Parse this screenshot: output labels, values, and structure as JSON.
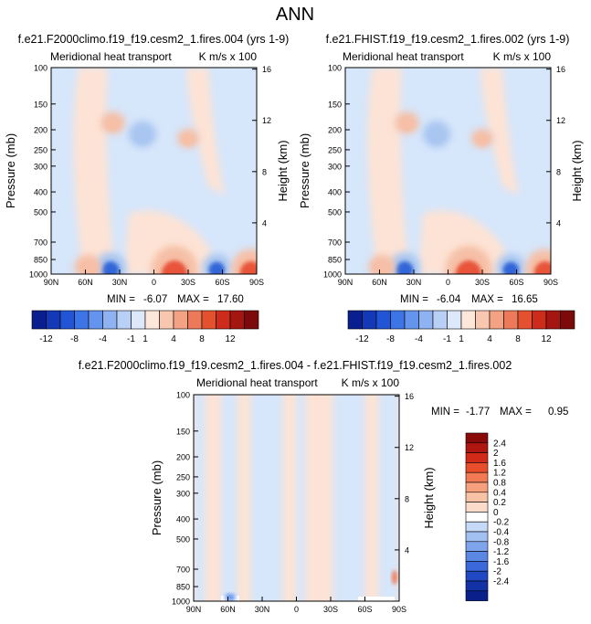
{
  "figure_title": "ANN",
  "colors": {
    "warm_mid": "#f6bfa6",
    "warm_strong": "#e8553a",
    "cool_mid": "#a9c6f0",
    "cool_strong": "#3066d8",
    "bg_pos": "#fde3d5",
    "bg_neg": "#d6e6fb"
  },
  "chart_data": [
    {
      "type": "heatmap",
      "title": "f.e21.F2000climo.f19_f19.cesm2_1.fires.004 (yrs 1-9)",
      "subtitle_left": "Meridional heat transport",
      "subtitle_right": "K m/s x 100",
      "ylabel": "Pressure (mb)",
      "ylabel_right": "Height (km)",
      "x_ticks": [
        "90N",
        "60N",
        "30N",
        "0",
        "30S",
        "60S",
        "90S"
      ],
      "y_ticks": [
        "100",
        "150",
        "200",
        "250",
        "300",
        "400",
        "500",
        "700",
        "850",
        "1000"
      ],
      "y_right_ticks": [
        "16",
        "12",
        "8",
        "4"
      ],
      "xlim": [
        90,
        -90
      ],
      "ylim": [
        1000,
        100
      ],
      "min_text": "MIN =",
      "min_value": "-6.07",
      "max_text": "MAX =",
      "max_value": "17.60",
      "features": [
        {
          "lat": -18,
          "p": 960,
          "value": 17.6
        },
        {
          "lat": 38,
          "p": 930,
          "value": -5.5
        },
        {
          "lat": -55,
          "p": 930,
          "value": -4.5
        },
        {
          "lat": 58,
          "p": 925,
          "value": 3.5
        },
        {
          "lat": 10,
          "p": 210,
          "value": -4.0
        },
        {
          "lat": 36,
          "p": 185,
          "value": 2.5
        },
        {
          "lat": -30,
          "p": 220,
          "value": 1.5
        },
        {
          "lat": -85,
          "p": 950,
          "value": 9.0
        }
      ]
    },
    {
      "type": "heatmap",
      "title": "f.e21.FHIST.f19_f19.cesm2_1.fires.002 (yrs 1-9)",
      "subtitle_left": "Meridional heat transport",
      "subtitle_right": "K m/s x 100",
      "ylabel": "Pressure (mb)",
      "ylabel_right": "Height (km)",
      "x_ticks": [
        "90N",
        "60N",
        "30N",
        "0",
        "30S",
        "60S",
        "90S"
      ],
      "y_ticks": [
        "100",
        "150",
        "200",
        "250",
        "300",
        "400",
        "500",
        "700",
        "850",
        "1000"
      ],
      "y_right_ticks": [
        "16",
        "12",
        "8",
        "4"
      ],
      "xlim": [
        90,
        -90
      ],
      "ylim": [
        1000,
        100
      ],
      "min_text": "MIN =",
      "min_value": "-6.04",
      "max_text": "MAX =",
      "max_value": "16.65",
      "features": [
        {
          "lat": -18,
          "p": 960,
          "value": 16.65
        },
        {
          "lat": 38,
          "p": 930,
          "value": -5.5
        },
        {
          "lat": -55,
          "p": 930,
          "value": -4.5
        },
        {
          "lat": 58,
          "p": 925,
          "value": 3.5
        },
        {
          "lat": 10,
          "p": 210,
          "value": -4.0
        },
        {
          "lat": 36,
          "p": 185,
          "value": 2.5
        },
        {
          "lat": -30,
          "p": 220,
          "value": 1.5
        },
        {
          "lat": -85,
          "p": 950,
          "value": 9.0
        }
      ]
    },
    {
      "type": "heatmap",
      "title": "f.e21.F2000climo.f19_f19.cesm2_1.fires.004 - f.e21.FHIST.f19_f19.cesm2_1.fires.002",
      "subtitle_left": "Meridional heat transport",
      "subtitle_right": "K m/s x 100",
      "ylabel": "Pressure (mb)",
      "ylabel_right": "Height (km)",
      "x_ticks": [
        "90N",
        "60N",
        "30N",
        "0",
        "30S",
        "60S",
        "90S"
      ],
      "y_ticks": [
        "100",
        "150",
        "200",
        "250",
        "300",
        "400",
        "500",
        "700",
        "850",
        "1000"
      ],
      "y_right_ticks": [
        "16",
        "12",
        "8",
        "4"
      ],
      "xlim": [
        90,
        -90
      ],
      "ylim": [
        1000,
        100
      ],
      "min_text": "MIN =",
      "min_value": "-1.77",
      "max_text": "MAX =",
      "max_value": "0.95",
      "bands": [
        {
          "lat_from": 90,
          "lat_to": 80,
          "sign": "neg"
        },
        {
          "lat_from": 80,
          "lat_to": 66,
          "sign": "pos"
        },
        {
          "lat_from": 66,
          "lat_to": 52,
          "sign": "neg"
        },
        {
          "lat_from": 52,
          "lat_to": 40,
          "sign": "pos"
        },
        {
          "lat_from": 40,
          "lat_to": 12,
          "sign": "neg"
        },
        {
          "lat_from": 12,
          "lat_to": 0,
          "sign": "pos"
        },
        {
          "lat_from": 0,
          "lat_to": -8,
          "sign": "neg"
        },
        {
          "lat_from": -8,
          "lat_to": -32,
          "sign": "pos"
        },
        {
          "lat_from": -32,
          "lat_to": -60,
          "sign": "neg"
        },
        {
          "lat_from": -60,
          "lat_to": -72,
          "sign": "pos"
        },
        {
          "lat_from": -72,
          "lat_to": -90,
          "sign": "neg"
        }
      ]
    }
  ],
  "colorbar_main": {
    "colors": [
      "#0a1f8f",
      "#1339b8",
      "#2255d6",
      "#3d74e6",
      "#6494ee",
      "#8fb2f2",
      "#b8cff6",
      "#dde8fb",
      "#fde6da",
      "#f9c7b0",
      "#f3a283",
      "#ec7a5a",
      "#e3512f",
      "#cc2c19",
      "#a51610",
      "#7c0a0a"
    ],
    "labels": [
      "-12",
      "-8",
      "-4",
      "-1",
      "1",
      "4",
      "8",
      "12"
    ]
  },
  "colorbar_diff": {
    "colors": [
      "#8a0a0a",
      "#b01610",
      "#d22a18",
      "#e84e2c",
      "#f27a55",
      "#f6a07d",
      "#f8c2a6",
      "#fbdccb",
      "#ffffff",
      "#c6d9f7",
      "#a3c0f2",
      "#7ea4ec",
      "#5a86e4",
      "#3b68da",
      "#2149c4",
      "#1232a6",
      "#0a1f8a"
    ],
    "labels": [
      "2.4",
      "2",
      "1.6",
      "1.2",
      "0.8",
      "0.4",
      "0.2",
      "0",
      "-0.2",
      "-0.4",
      "-0.8",
      "-1.2",
      "-1.6",
      "-2",
      "-2.4"
    ]
  }
}
